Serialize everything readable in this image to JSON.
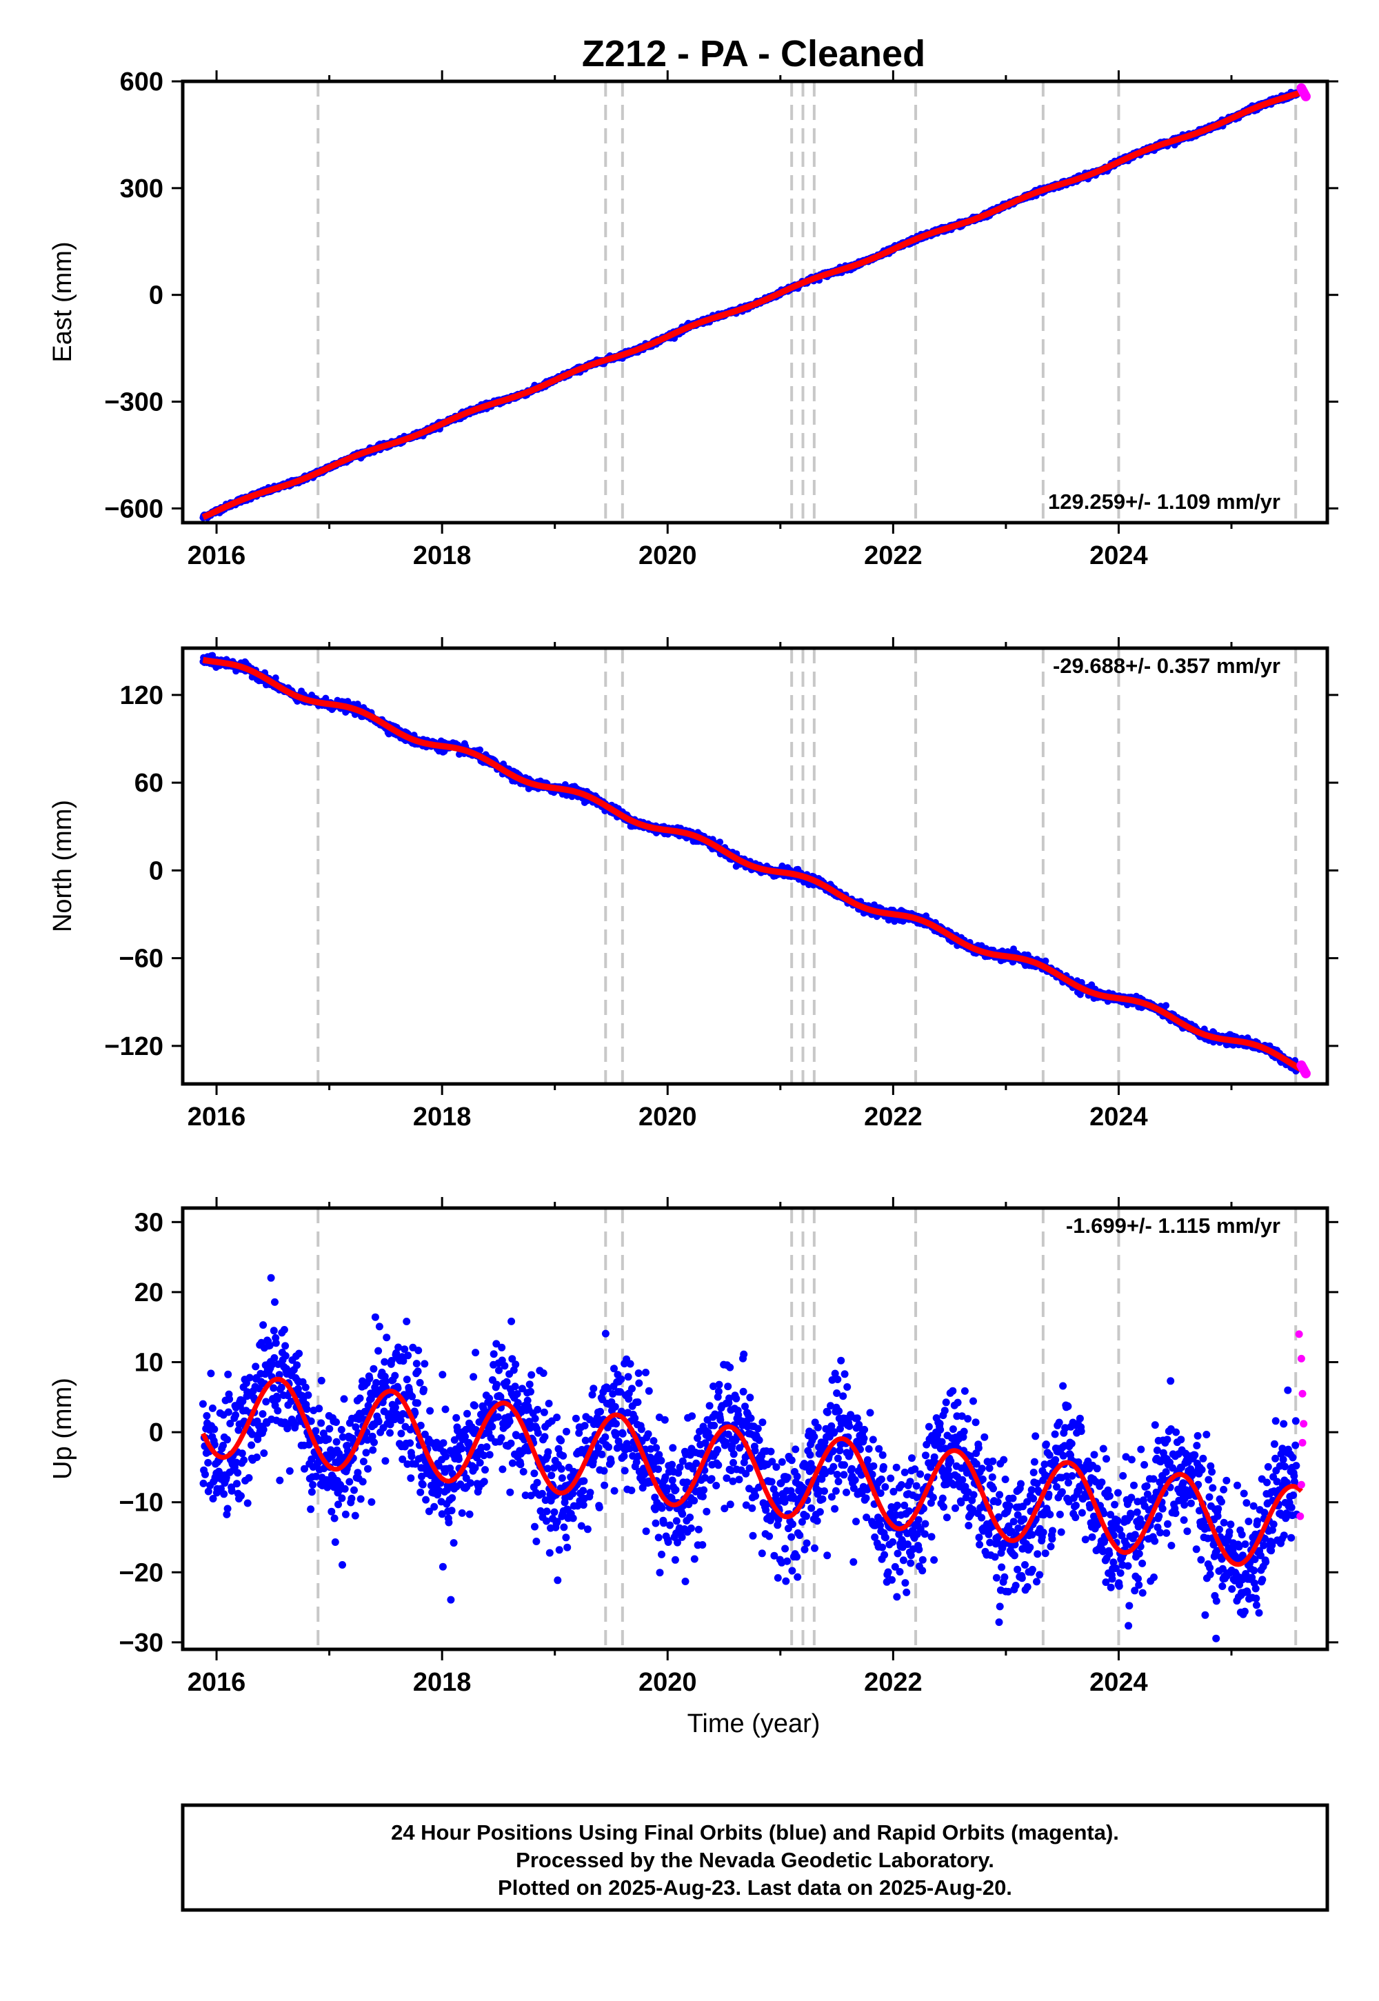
{
  "title": "Z212  - PA - Cleaned",
  "xlabel": "Time (year)",
  "xticks": [
    "2016",
    "2018",
    "2020",
    "2022",
    "2024"
  ],
  "footer": {
    "line1": "24 Hour Positions Using Final Orbits (blue) and Rapid Orbits (magenta).",
    "line2": "Processed by the Nevada Geodetic Laboratory.",
    "line3": "Plotted on 2025-Aug-23. Last data on 2025-Aug-20."
  },
  "colors": {
    "final": "#0000ff",
    "rapid": "#ff00ff",
    "model": "#ff0000",
    "steps": "#c8c8c8"
  },
  "chart_data": [
    {
      "type": "scatter",
      "name": "east",
      "ylabel": "East (mm)",
      "yticks": [
        "600",
        "300",
        "0",
        "−300",
        "−600"
      ],
      "ytick_values": [
        600,
        300,
        0,
        -300,
        -600
      ],
      "ylim": [
        -640,
        600
      ],
      "xlim": [
        2015.7,
        2025.85
      ],
      "rate": "129.259+/- 1.109 mm/yr",
      "rate_value": 129.259,
      "rate_sigma": 1.109,
      "start": [
        2015.88,
        -622
      ],
      "end": [
        2025.62,
        572
      ],
      "step_years": [
        2016.9,
        2019.45,
        2019.6,
        2021.1,
        2021.2,
        2021.3,
        2022.2,
        2023.33,
        2024.0,
        2025.57
      ]
    },
    {
      "type": "scatter",
      "name": "north",
      "ylabel": "North (mm)",
      "yticks": [
        "120",
        "60",
        "0",
        "−60",
        "−120"
      ],
      "ytick_values": [
        120,
        60,
        0,
        -60,
        -120
      ],
      "ylim": [
        -146,
        152
      ],
      "xlim": [
        2015.7,
        2025.85
      ],
      "rate": "-29.688+/- 0.357 mm/yr",
      "rate_value": -29.688,
      "rate_sigma": 0.357,
      "start": [
        2015.88,
        146
      ],
      "end": [
        2025.62,
        -134
      ],
      "step_years": [
        2016.9,
        2019.45,
        2019.6,
        2021.1,
        2021.2,
        2021.3,
        2022.2,
        2023.33,
        2024.0,
        2025.57
      ]
    },
    {
      "type": "scatter",
      "name": "up",
      "ylabel": "Up (mm)",
      "yticks": [
        "30",
        "20",
        "10",
        "0",
        "−10",
        "−20",
        "−30"
      ],
      "ytick_values": [
        30,
        20,
        10,
        0,
        -10,
        -20,
        -30
      ],
      "ylim": [
        -31,
        32
      ],
      "xlim": [
        2015.7,
        2025.85
      ],
      "rate": "-1.699+/- 1.115 mm/yr",
      "rate_value": -1.699,
      "rate_sigma": 1.115,
      "seasonal_amplitude": 6,
      "scatter_sd": 4.5,
      "step_years": [
        2016.9,
        2019.45,
        2019.6,
        2021.1,
        2021.2,
        2021.3,
        2022.2,
        2023.33,
        2024.0,
        2025.57
      ],
      "rapid_points": [
        [
          2025.6,
          14.0
        ],
        [
          2025.62,
          10.5
        ],
        [
          2025.63,
          5.5
        ],
        [
          2025.64,
          1.2
        ],
        [
          2025.63,
          -1.5
        ],
        [
          2025.62,
          -7.5
        ],
        [
          2025.61,
          -12.0
        ]
      ]
    }
  ]
}
